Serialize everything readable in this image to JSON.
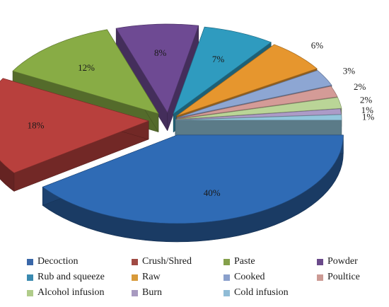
{
  "chart_data": {
    "type": "pie",
    "style": "3d-exploded",
    "slices": [
      {
        "label": "Decoction",
        "value": 40,
        "display": "40%",
        "color": "#2f6bb5"
      },
      {
        "label": "Crush/Shred",
        "value": 18,
        "display": "18%",
        "color": "#b8403d"
      },
      {
        "label": "Paste",
        "value": 12,
        "display": "12%",
        "color": "#88ac45"
      },
      {
        "label": "Powder",
        "value": 8,
        "display": "8%",
        "color": "#6e4a93"
      },
      {
        "label": "Rub and squeeze",
        "value": 7,
        "display": "7%",
        "color": "#2f9bbf"
      },
      {
        "label": "Raw",
        "value": 6,
        "display": "6%",
        "color": "#e6962e"
      },
      {
        "label": "Cooked",
        "value": 3,
        "display": "3%",
        "color": "#8da6d3"
      },
      {
        "label": "Poultice",
        "value": 2,
        "display": "2%",
        "color": "#d49b97"
      },
      {
        "label": "Alcohol infusion",
        "value": 2,
        "display": "2%",
        "color": "#bad597"
      },
      {
        "label": "Burn",
        "value": 1,
        "display": "1%",
        "color": "#ac9bc7"
      },
      {
        "label": "Cold infusion",
        "value": 1,
        "display": "1%",
        "color": "#93c6dc"
      }
    ],
    "legend_placement": "bottom",
    "legend_legend_colors": {
      "Decoction": "#3a67a8",
      "Crush/Shred": "#a04a44",
      "Paste": "#84a04a",
      "Powder": "#6a4a8a",
      "Rub and squeeze": "#3a8ab0",
      "Raw": "#d89a3a",
      "Cooked": "#8aa0cc",
      "Poultice": "#cc9a94",
      "Alcohol infusion": "#b0cc8a",
      "Burn": "#a89ac0",
      "Cold infusion": "#90bcd6"
    }
  }
}
